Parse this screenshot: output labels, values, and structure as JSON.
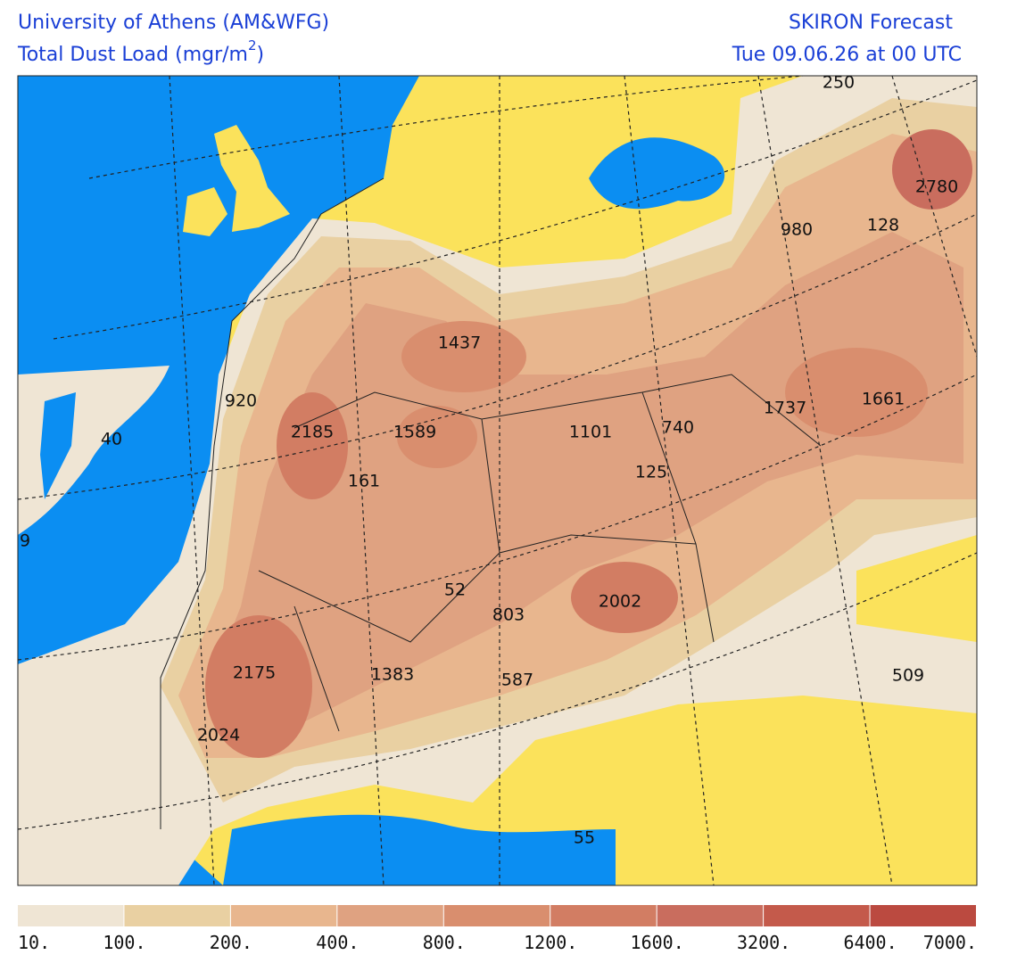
{
  "header": {
    "left": [
      "University of Athens (AM&WFG)",
      {
        "text": "Total Dust Load (mgr/m",
        "superscript": "2",
        "close": ")"
      }
    ],
    "right": [
      "SKIRON Forecast",
      "Tue 09.06.26 at 00 UTC"
    ]
  },
  "map": {
    "labels": [
      "250",
      "2780",
      "128",
      "980",
      "1437",
      "920",
      "2185",
      "1589",
      "1101",
      "740",
      "1737",
      "1661",
      "40",
      "161",
      "125",
      "9",
      "52",
      "803",
      "2002",
      "2175",
      "1383",
      "587",
      "509",
      "2024",
      "55"
    ]
  },
  "legend": {
    "labels": [
      "10.",
      "100.",
      "200.",
      "400.",
      "800.",
      "1200.",
      "1600.",
      "3200.",
      "6400.",
      "7000."
    ],
    "colors": [
      "#efe5d4",
      "#e9d0a2",
      "#e8b68e",
      "#dfa281",
      "#d98e6e",
      "#d27d63",
      "#c96d5e",
      "#c45a4b",
      "#bb4a40"
    ]
  }
}
